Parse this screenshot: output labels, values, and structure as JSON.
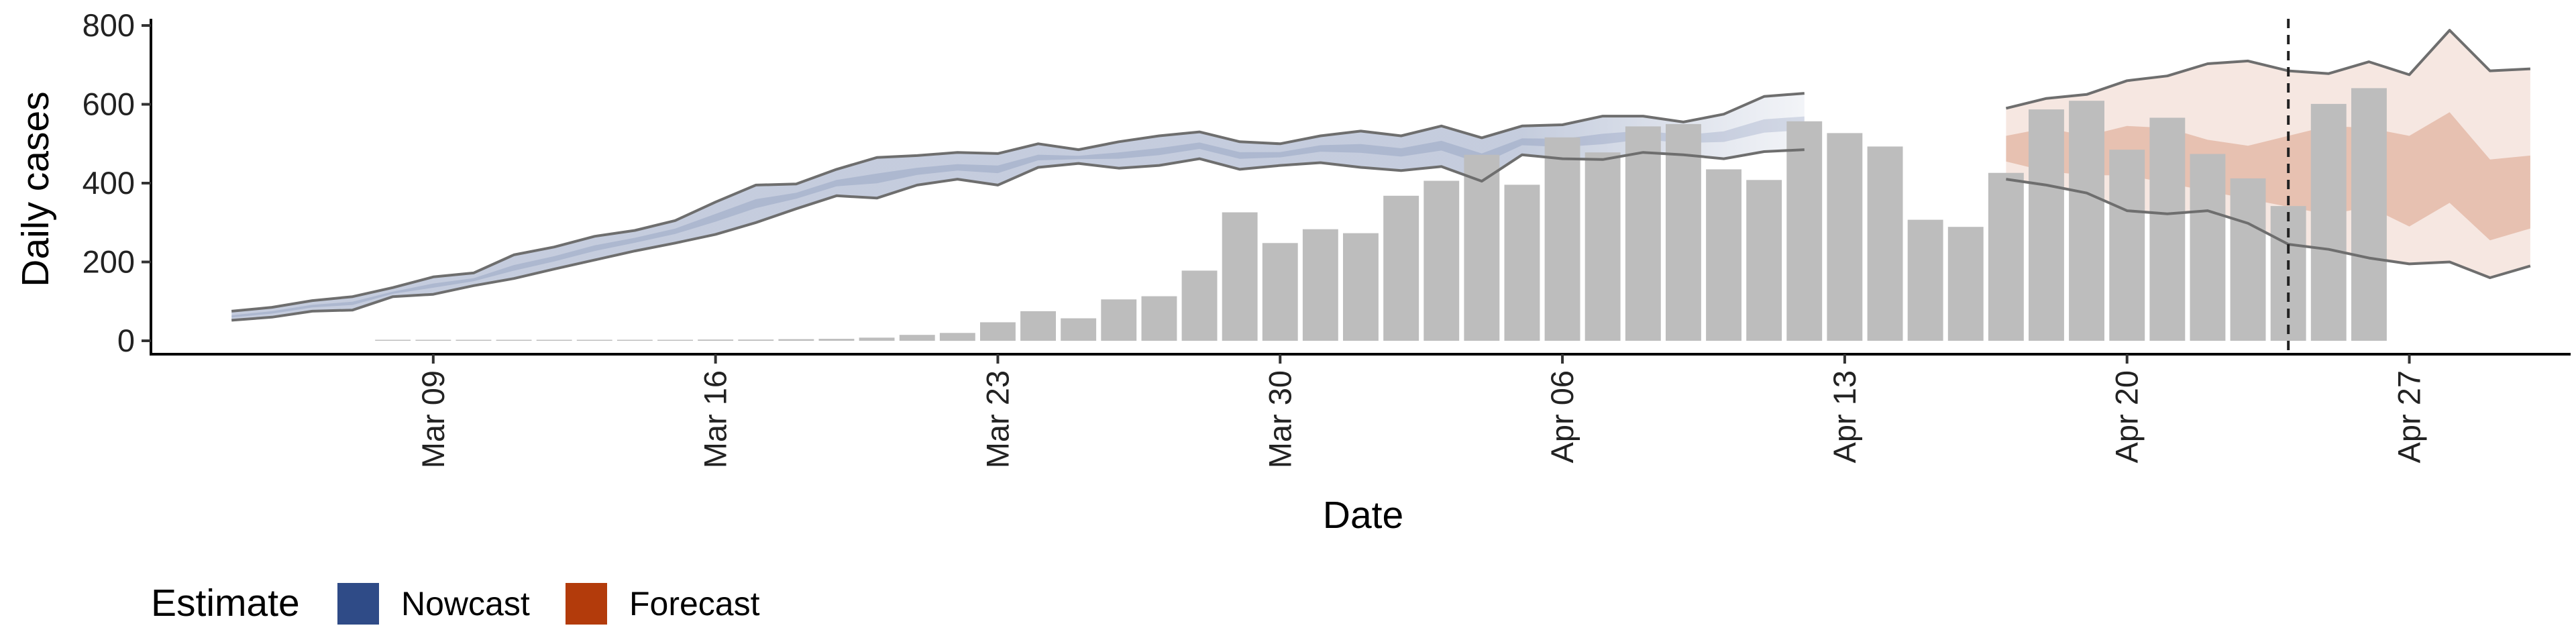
{
  "chart_data": {
    "type": "bar",
    "title": "",
    "xlabel": "Date",
    "ylabel": "Daily cases",
    "ylim": [
      0,
      800
    ],
    "y_ticks": [
      0,
      200,
      400,
      600,
      800
    ],
    "x_ticks": [
      "Mar 09",
      "Mar 16",
      "Mar 23",
      "Mar 30",
      "Apr 06",
      "Apr 13",
      "Apr 20",
      "Apr 27"
    ],
    "x_range": [
      "2020-03-02",
      "2020-05-01"
    ],
    "dashed_line_date": "2020-04-24",
    "cases": {
      "start_date": "2020-03-04",
      "values": [
        null,
        null,
        null,
        null,
        1,
        1,
        1,
        2,
        1,
        0,
        0,
        2,
        3,
        3,
        4,
        5,
        8,
        15,
        20,
        47,
        75,
        57,
        105,
        113,
        178,
        326,
        248,
        283,
        273,
        368,
        406,
        472,
        396,
        516,
        478,
        544,
        550,
        435,
        408,
        557,
        527,
        493,
        307,
        289,
        426,
        587,
        609,
        485,
        566,
        474,
        412,
        342,
        601,
        641
      ]
    },
    "series": [
      {
        "name": "Nowcast",
        "color": "#2f4b87",
        "start_date": "2020-03-04",
        "upper": [
          75,
          85,
          102,
          112,
          135,
          162,
          172,
          218,
          238,
          265,
          280,
          305,
          352,
          395,
          398,
          435,
          465,
          470,
          478,
          475,
          500,
          485,
          505,
          520,
          530,
          505,
          500,
          520,
          532,
          520,
          545,
          515,
          545,
          548,
          570,
          570,
          555,
          575,
          620,
          628
        ],
        "lower": [
          52,
          60,
          75,
          78,
          112,
          118,
          140,
          158,
          182,
          205,
          228,
          248,
          270,
          300,
          335,
          368,
          362,
          395,
          410,
          395,
          440,
          450,
          438,
          445,
          462,
          435,
          445,
          452,
          440,
          432,
          442,
          405,
          472,
          462,
          460,
          478,
          472,
          462,
          480,
          485
        ],
        "median": [
          62,
          72,
          88,
          95,
          122,
          140,
          155,
          185,
          208,
          235,
          255,
          278,
          312,
          348,
          368,
          400,
          412,
          430,
          440,
          435,
          465,
          465,
          470,
          480,
          495,
          470,
          472,
          488,
          488,
          478,
          495,
          462,
          505,
          502,
          512,
          522,
          512,
          518,
          545,
          552
        ]
      },
      {
        "name": "Forecast",
        "color": "#b33b0b",
        "start_date": "2020-04-17",
        "upper": [
          590,
          615,
          625,
          660,
          672,
          703,
          710,
          685,
          678,
          708,
          675,
          788,
          685,
          690
        ],
        "upper_inner": [
          520,
          540,
          520,
          545,
          540,
          510,
          495,
          520,
          545,
          540,
          520,
          580,
          460,
          470
        ],
        "lower_inner": [
          455,
          430,
          420,
          420,
          400,
          380,
          360,
          340,
          320,
          340,
          290,
          350,
          255,
          285
        ],
        "lower": [
          410,
          395,
          375,
          330,
          322,
          330,
          298,
          245,
          232,
          210,
          195,
          200,
          160,
          190
        ]
      }
    ],
    "legend": {
      "title": "Estimate",
      "position": "bottom-left",
      "items": [
        {
          "label": "Nowcast",
          "color": "#2f4b87"
        },
        {
          "label": "Forecast",
          "color": "#b33b0b"
        }
      ]
    }
  }
}
